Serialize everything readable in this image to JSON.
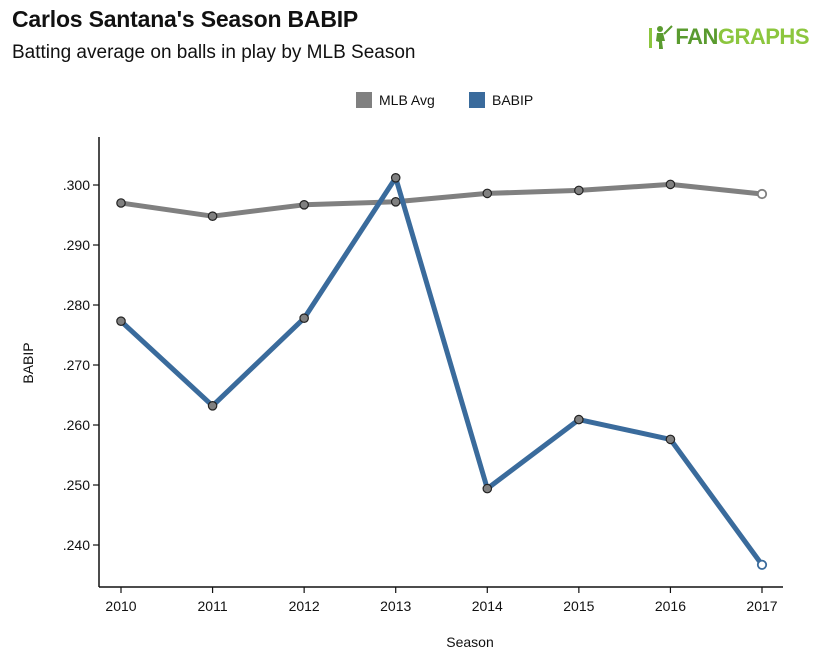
{
  "header": {
    "title": "Carlos Santana's Season BABIP",
    "subtitle": "Batting average on balls in play by MLB Season",
    "brand_part1": "FAN",
    "brand_part2": "GRAPHS"
  },
  "colors": {
    "mlb": "#808080",
    "babip": "#3a6b9c",
    "marker_fill": "#808080",
    "axis": "#111111",
    "brand_dark": "#5a9b2f",
    "brand_light": "#8cc63e"
  },
  "chart_data": {
    "type": "line",
    "xlabel": "Season",
    "ylabel": "BABIP",
    "x": [
      2010,
      2011,
      2012,
      2013,
      2014,
      2015,
      2016,
      2017
    ],
    "ylim": [
      0.233,
      0.308
    ],
    "yticks": [
      0.24,
      0.25,
      0.26,
      0.27,
      0.28,
      0.29,
      0.3
    ],
    "ytick_labels": [
      ".240",
      ".250",
      ".260",
      ".270",
      ".280",
      ".290",
      ".300"
    ],
    "legend_position": "top-center",
    "grid": false,
    "series": [
      {
        "name": "MLB Avg",
        "color": "#808080",
        "values": [
          0.297,
          0.2948,
          0.2967,
          0.2972,
          0.2986,
          0.2991,
          0.3001,
          0.2985
        ]
      },
      {
        "name": "BABIP",
        "color": "#3a6b9c",
        "values": [
          0.2773,
          0.2632,
          0.2778,
          0.3012,
          0.2494,
          0.2609,
          0.2576,
          0.2367
        ]
      }
    ],
    "hollow_last_point": true
  }
}
